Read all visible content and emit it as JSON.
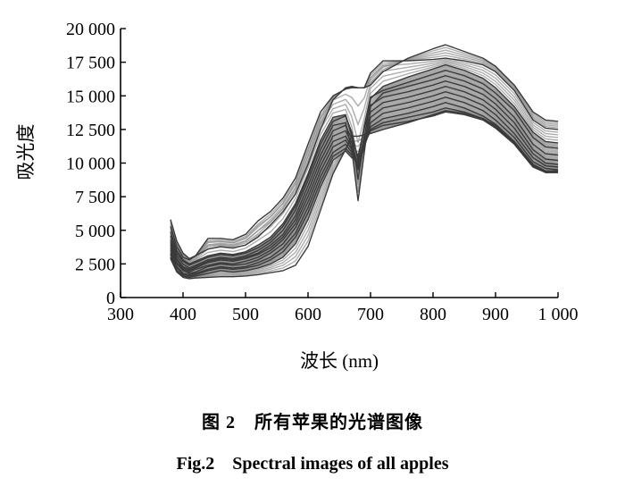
{
  "chart_data": {
    "type": "line",
    "xlabel": "波长 (nm)",
    "ylabel": "吸光度",
    "xlim": [
      300,
      1000
    ],
    "ylim": [
      0,
      20000
    ],
    "x_ticks": [
      300,
      400,
      500,
      600,
      700,
      800,
      900,
      1000
    ],
    "x_tick_labels": [
      "300",
      "400",
      "500",
      "600",
      "700",
      "800",
      "900",
      "1 000"
    ],
    "y_ticks": [
      0,
      2500,
      5000,
      7500,
      10000,
      12500,
      15000,
      17500,
      20000
    ],
    "y_tick_labels": [
      "0",
      "2 500",
      "5 000",
      "7 500",
      "10 000",
      "12 500",
      "15 000",
      "17 500",
      "20 000"
    ],
    "grid": false,
    "legend": "none",
    "line_color": "#3a3a3a",
    "band_color": "#8a8a8a",
    "x": [
      380,
      390,
      400,
      410,
      420,
      440,
      460,
      480,
      500,
      520,
      540,
      560,
      580,
      600,
      620,
      640,
      660,
      670,
      680,
      690,
      700,
      720,
      760,
      800,
      820,
      850,
      880,
      900,
      930,
      960,
      980,
      1000
    ],
    "series": [
      {
        "values": [
          5800,
          4200,
          3300,
          2900,
          3100,
          3600,
          3800,
          3700,
          3900,
          4500,
          5400,
          6400,
          7700,
          9900,
          12500,
          14700,
          15600,
          15700,
          15600,
          15600,
          15800,
          16800,
          17800,
          18500,
          18800,
          18300,
          17800,
          17200,
          15800,
          13800,
          13200,
          13100
        ]
      },
      {
        "values": [
          5300,
          3800,
          3000,
          2800,
          3100,
          4400,
          4400,
          4300,
          4700,
          5700,
          6400,
          7400,
          8900,
          11400,
          13800,
          15000,
          15500,
          15600,
          15600,
          15600,
          16700,
          17600,
          17600,
          17700,
          17800,
          17600,
          17300,
          16800,
          15400,
          13200,
          12600,
          12500
        ]
      },
      {
        "values": [
          4900,
          3500,
          2800,
          2500,
          2700,
          3100,
          3300,
          3200,
          3400,
          3900,
          4500,
          5500,
          7000,
          9200,
          11700,
          13400,
          13600,
          12000,
          8800,
          11800,
          14800,
          15700,
          16400,
          17000,
          17300,
          16900,
          16300,
          15600,
          14200,
          12300,
          11600,
          11500
        ]
      },
      {
        "values": [
          4600,
          3300,
          2700,
          2400,
          2600,
          3000,
          3200,
          3100,
          3300,
          3700,
          4300,
          5300,
          6800,
          9000,
          11400,
          13100,
          13500,
          12300,
          10200,
          12800,
          14900,
          15400,
          16000,
          16600,
          16900,
          16500,
          15900,
          15200,
          13900,
          11900,
          11200,
          11100
        ]
      },
      {
        "values": [
          4300,
          3100,
          2500,
          2200,
          2400,
          2800,
          3000,
          2900,
          3100,
          3500,
          4100,
          5000,
          6500,
          8700,
          11000,
          12800,
          13000,
          11000,
          7200,
          10800,
          14200,
          15200,
          15700,
          16200,
          16500,
          16100,
          15500,
          14800,
          13400,
          11400,
          10700,
          10600
        ]
      },
      {
        "values": [
          4100,
          2900,
          2300,
          2100,
          2300,
          2700,
          2900,
          2800,
          3000,
          3300,
          3900,
          4700,
          6100,
          8300,
          10600,
          12400,
          12800,
          11800,
          10500,
          12600,
          14300,
          14900,
          15300,
          15800,
          16100,
          15700,
          15100,
          14400,
          13000,
          11000,
          10300,
          10200
        ]
      },
      {
        "values": [
          3900,
          2800,
          2200,
          2000,
          2200,
          2600,
          2800,
          2700,
          2900,
          3200,
          3700,
          4500,
          5800,
          7900,
          10200,
          12000,
          12400,
          11500,
          9800,
          12000,
          13800,
          14500,
          14900,
          15400,
          15700,
          15300,
          14700,
          14000,
          12600,
          10700,
          10000,
          9900
        ]
      },
      {
        "values": [
          3700,
          2600,
          2100,
          1900,
          2100,
          2400,
          2600,
          2500,
          2700,
          3000,
          3500,
          4300,
          5500,
          7500,
          9800,
          11600,
          12000,
          11200,
          9600,
          11600,
          13400,
          14100,
          14500,
          15000,
          15300,
          14900,
          14300,
          13600,
          12200,
          10400,
          9800,
          9700
        ]
      },
      {
        "values": [
          3500,
          2500,
          2000,
          1800,
          1900,
          2300,
          2500,
          2400,
          2500,
          2800,
          3300,
          4000,
          5200,
          7100,
          9400,
          11200,
          11700,
          11000,
          9500,
          11300,
          13000,
          13700,
          14100,
          14600,
          14900,
          14500,
          13900,
          13200,
          11900,
          10100,
          9600,
          9500
        ]
      },
      {
        "values": [
          3300,
          2300,
          1800,
          1700,
          1800,
          2100,
          2300,
          2200,
          2300,
          2600,
          3000,
          3700,
          4800,
          6700,
          9000,
          10800,
          11400,
          10800,
          9700,
          11200,
          12700,
          13300,
          13700,
          14200,
          14500,
          14100,
          13500,
          12900,
          11600,
          9900,
          9400,
          9400
        ]
      },
      {
        "values": [
          3200,
          2200,
          1700,
          1600,
          1700,
          2000,
          2200,
          2100,
          2200,
          2400,
          2800,
          3400,
          4500,
          6300,
          8600,
          10500,
          11100,
          10600,
          9900,
          11300,
          12500,
          13000,
          13400,
          13800,
          14100,
          13800,
          13300,
          12700,
          11500,
          9800,
          9300,
          9300
        ]
      },
      {
        "values": [
          3000,
          2000,
          1600,
          1500,
          1600,
          1800,
          2000,
          1900,
          2000,
          2200,
          2500,
          3000,
          4000,
          5800,
          8200,
          10200,
          10900,
          10400,
          10100,
          11400,
          12400,
          12800,
          13100,
          13500,
          13800,
          13600,
          13200,
          12600,
          11400,
          9700,
          9300,
          9300
        ]
      },
      {
        "values": [
          2900,
          1900,
          1500,
          1400,
          1450,
          1500,
          1550,
          1550,
          1600,
          1700,
          1850,
          2000,
          2400,
          3800,
          6500,
          9200,
          11000,
          12000,
          12000,
          12100,
          12200,
          12500,
          13000,
          13600,
          13900,
          13700,
          13300,
          12800,
          11600,
          9900,
          9400,
          9400
        ]
      }
    ]
  },
  "caption": {
    "cn": "图 2　所有苹果的光谱图像",
    "en": "Fig.2　Spectral images of all apples"
  }
}
